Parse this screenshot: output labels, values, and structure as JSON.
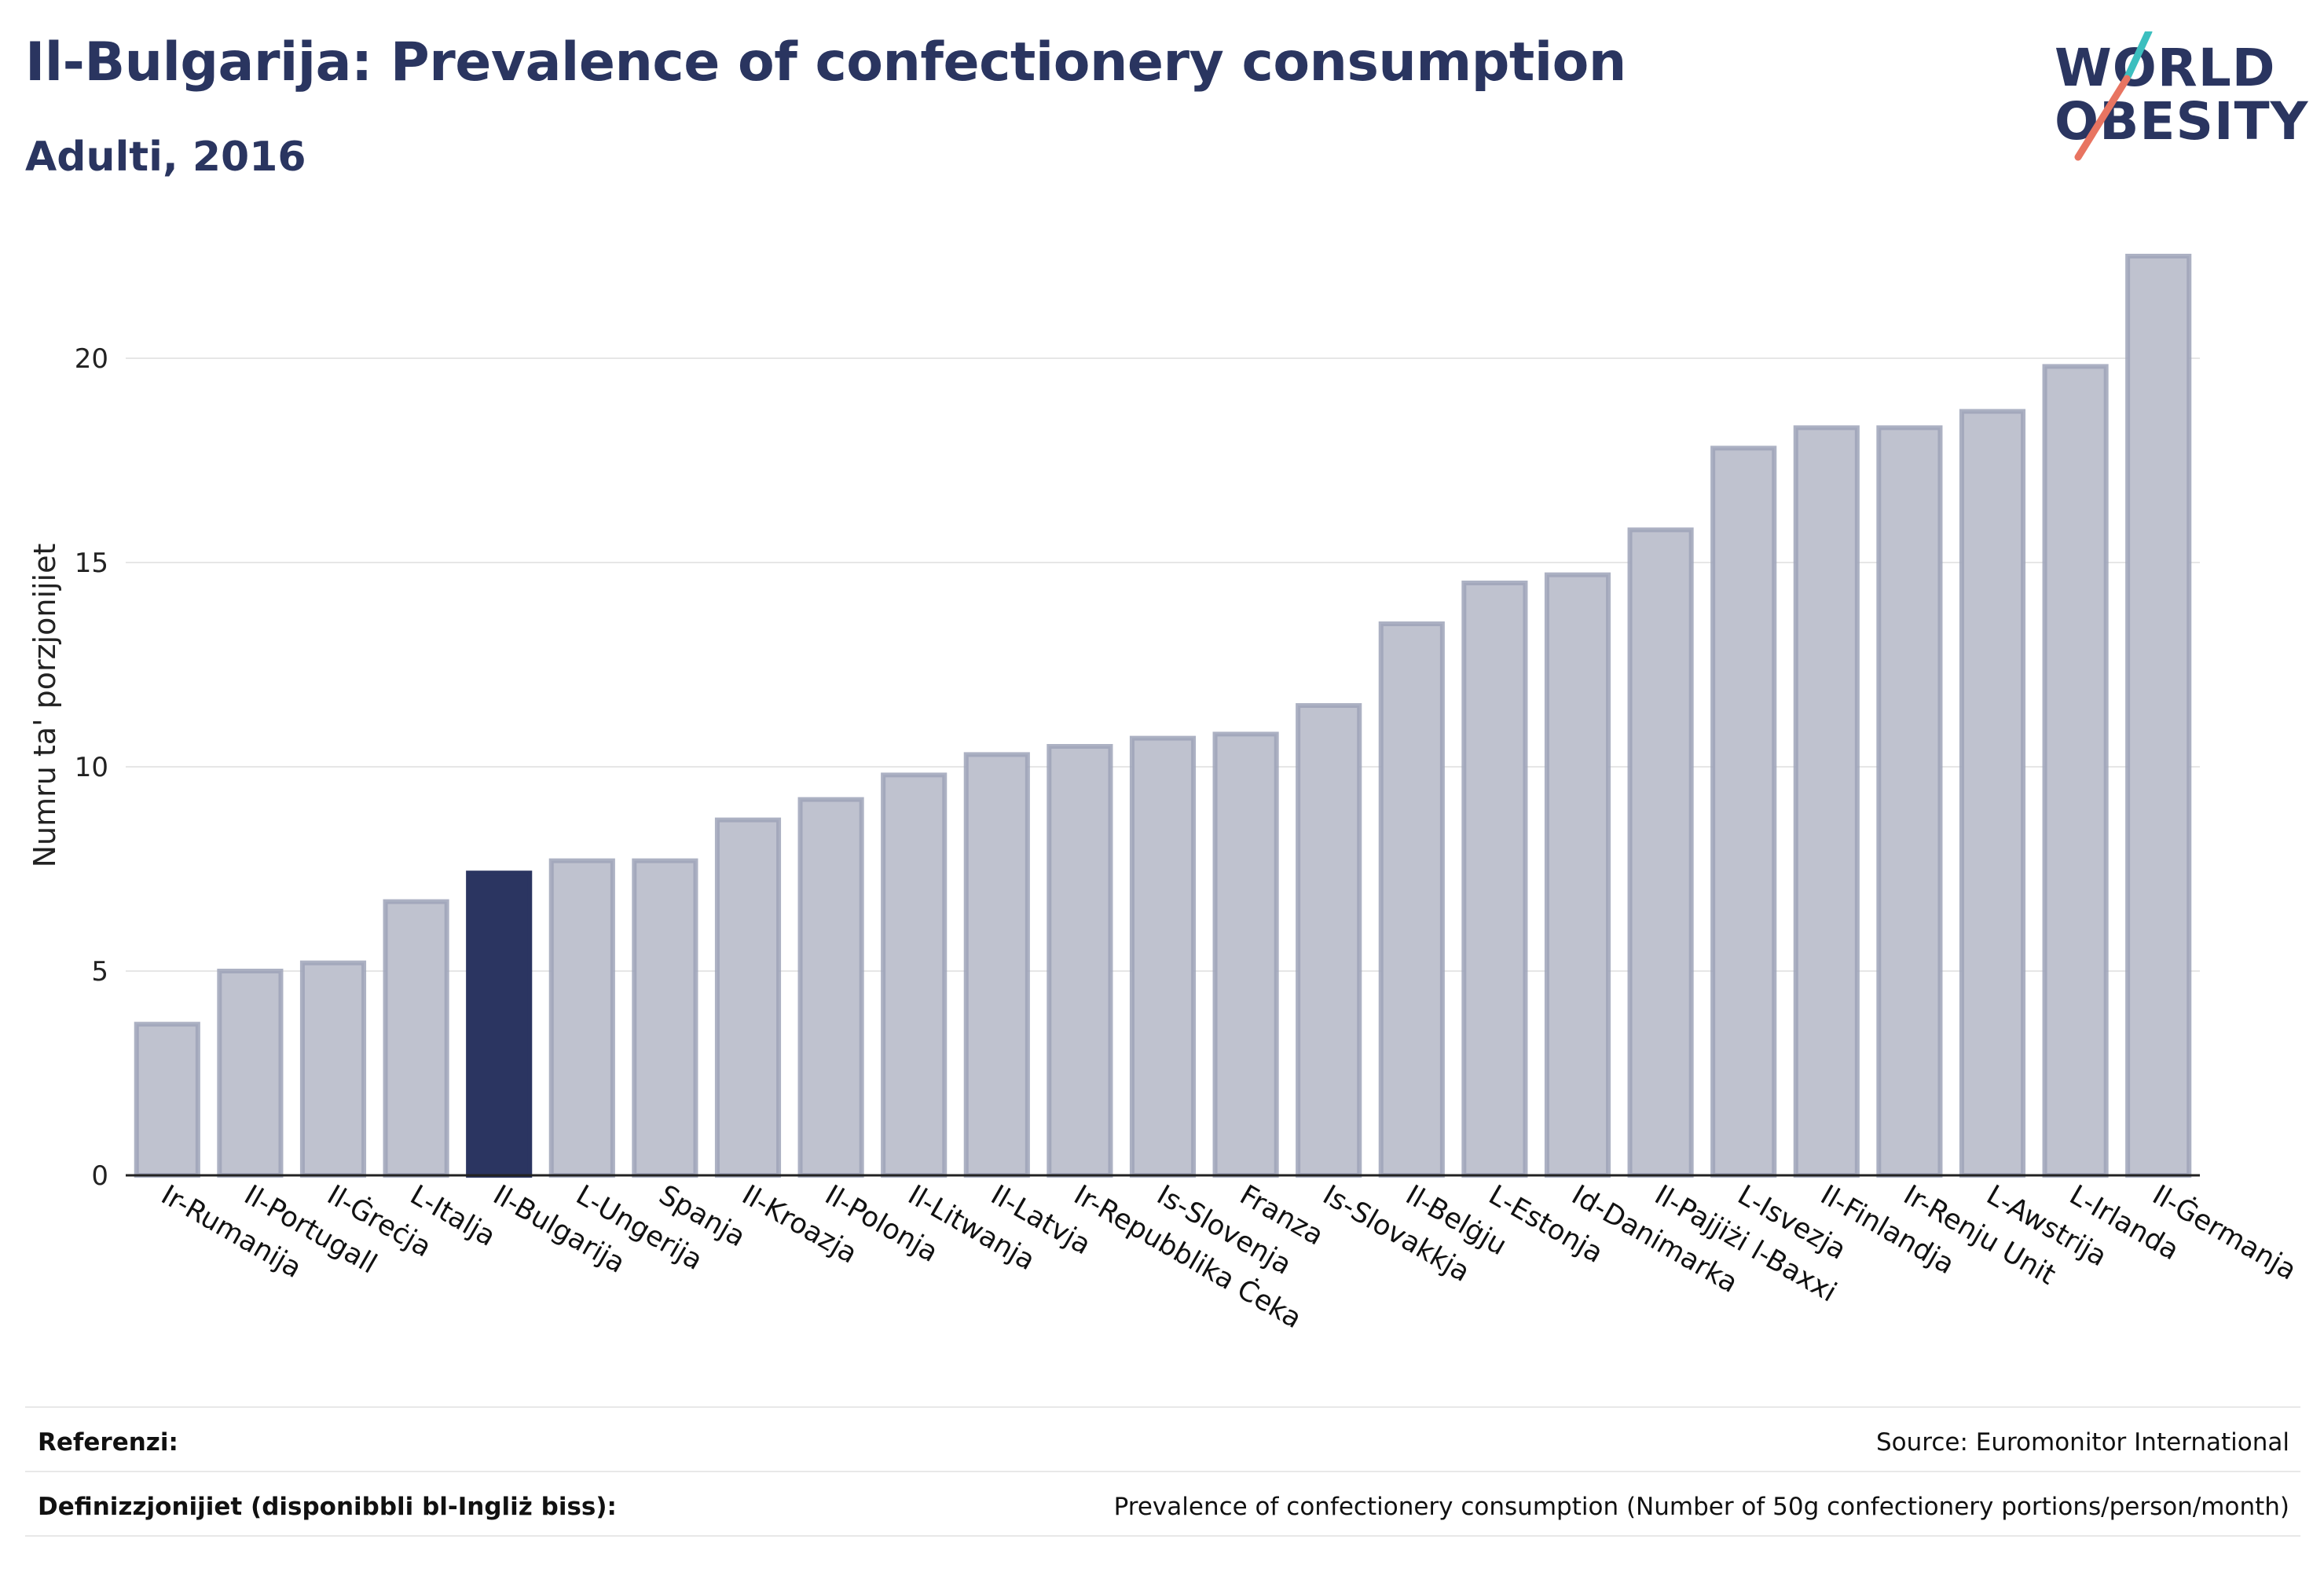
{
  "title": "Il-Bulgarija: Prevalence of confectionery consumption",
  "subtitle": "Adulti, 2016",
  "logo": {
    "line1": "WORLD",
    "line2": "OBESITY"
  },
  "colors": {
    "title": "#2a3560",
    "bar": "#bfc2cf",
    "bar_stroke": "#9ea3b8",
    "highlight": "#2b3561",
    "grid": "#e6e6e6",
    "logo_teal": "#3cbfbf",
    "logo_coral": "#e87461"
  },
  "chart_data": {
    "type": "bar",
    "ylabel": "Numru ta' porzjonijiet",
    "xlabel": "",
    "ylim": [
      0,
      23
    ],
    "yticks": [
      0,
      5,
      10,
      15,
      20
    ],
    "grid": true,
    "highlight": "Il-Bulgarija",
    "categories": [
      "Ir-Rumanija",
      "Il-Portugall",
      "Il-Ġreċja",
      "L-Italja",
      "Il-Bulgarija",
      "L-Ungerija",
      "Spanja",
      "Il-Kroazja",
      "Il-Polonja",
      "Il-Litwanja",
      "Il-Latvja",
      "Ir-Repubblika Ċeka",
      "Is-Slovenja",
      "Franza",
      "Is-Slovakkja",
      "Il-Belġju",
      "L-Estonja",
      "Id-Danimarka",
      "Il-Pajjiżi l-Baxxi",
      "L-Isvezja",
      "Il-Finlandja",
      "Ir-Renju Unit",
      "L-Awstrija",
      "L-Irlanda",
      "Il-Ġermanja"
    ],
    "values": [
      3.7,
      5.0,
      5.2,
      6.7,
      7.4,
      7.7,
      7.7,
      8.7,
      9.2,
      9.8,
      10.3,
      10.5,
      10.7,
      10.8,
      11.5,
      13.5,
      14.5,
      14.7,
      15.8,
      17.8,
      18.3,
      18.3,
      18.7,
      19.8,
      22.5
    ]
  },
  "footer": {
    "references_label": "Referenzi:",
    "references_value": "Source: Euromonitor International",
    "definitions_label": "Definizzjonijiet (disponibbli bl-Ingliż biss):",
    "definitions_value": "Prevalence of confectionery consumption (Number of 50g confectionery portions/person/month)"
  }
}
